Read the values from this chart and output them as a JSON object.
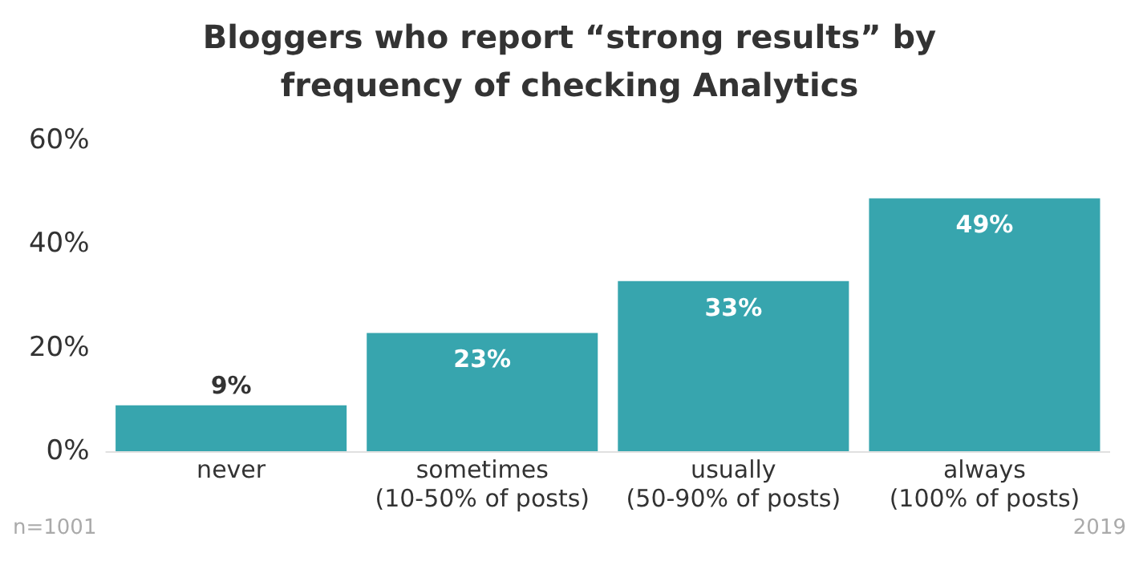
{
  "chart_data": {
    "type": "bar",
    "title": "Bloggers who report “strong results” by frequency of checking Analytics",
    "categories": [
      "never",
      "sometimes\n(10-50% of posts)",
      "usually\n(50-90% of posts)",
      "always\n(100% of posts)"
    ],
    "values": [
      9,
      23,
      33,
      49
    ],
    "value_labels": [
      "9%",
      "23%",
      "33%",
      "49%"
    ],
    "color": "#37a5ae",
    "ylim": [
      0,
      60
    ],
    "yticks": [
      {
        "value": 0,
        "label": "0%"
      },
      {
        "value": 20,
        "label": "20%"
      },
      {
        "value": 40,
        "label": "40%"
      },
      {
        "value": 60,
        "label": "60%"
      }
    ],
    "grid": false,
    "legend": false,
    "annotations": [
      "n=1001",
      "2019"
    ]
  }
}
